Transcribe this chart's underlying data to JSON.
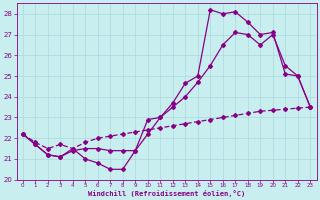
{
  "xlabel": "Windchill (Refroidissement éolien,°C)",
  "bg_color": "#c8eef0",
  "grid_color": "#b0dde0",
  "line_color": "#880088",
  "xlim": [
    -0.5,
    23.5
  ],
  "ylim": [
    20,
    28.5
  ],
  "xticks": [
    0,
    1,
    2,
    3,
    4,
    5,
    6,
    7,
    8,
    9,
    10,
    11,
    12,
    13,
    14,
    15,
    16,
    17,
    18,
    19,
    20,
    21,
    22,
    23
  ],
  "yticks": [
    20,
    21,
    22,
    23,
    24,
    25,
    26,
    27,
    28
  ],
  "line_A_x": [
    0,
    1,
    2,
    3,
    4,
    5,
    6,
    7,
    8,
    9,
    10,
    11,
    12,
    13,
    14,
    15,
    16,
    17,
    18,
    19,
    20,
    21,
    22,
    23
  ],
  "line_A_y": [
    22.2,
    21.7,
    21.2,
    21.1,
    21.5,
    21.0,
    20.8,
    20.5,
    20.5,
    21.4,
    22.9,
    23.0,
    23.7,
    24.65,
    25.0,
    28.2,
    28.0,
    28.1,
    27.6,
    27.0,
    27.1,
    25.1,
    25.0,
    23.5
  ],
  "line_B_x": [
    0,
    1,
    2,
    3,
    4,
    5,
    6,
    7,
    8,
    9,
    10,
    11,
    12,
    13,
    14,
    15,
    16,
    17,
    18,
    19,
    20,
    21,
    22,
    23
  ],
  "line_B_y": [
    22.2,
    21.8,
    21.5,
    21.7,
    21.5,
    21.8,
    22.0,
    22.1,
    22.2,
    22.3,
    22.4,
    22.5,
    22.6,
    22.7,
    22.8,
    22.9,
    23.0,
    23.1,
    23.2,
    23.3,
    23.35,
    23.4,
    23.45,
    23.5
  ],
  "line_C_x": [
    0,
    1,
    2,
    3,
    4,
    5,
    6,
    7,
    8,
    9,
    10,
    11,
    12,
    13,
    14,
    15,
    16,
    17,
    18,
    19,
    20,
    21,
    22,
    23
  ],
  "line_C_y": [
    22.2,
    21.7,
    21.2,
    21.1,
    21.4,
    21.5,
    21.5,
    21.4,
    21.4,
    21.4,
    22.2,
    23.0,
    23.5,
    24.0,
    24.7,
    25.5,
    26.5,
    27.1,
    27.0,
    26.5,
    27.0,
    25.5,
    25.0,
    23.5
  ]
}
